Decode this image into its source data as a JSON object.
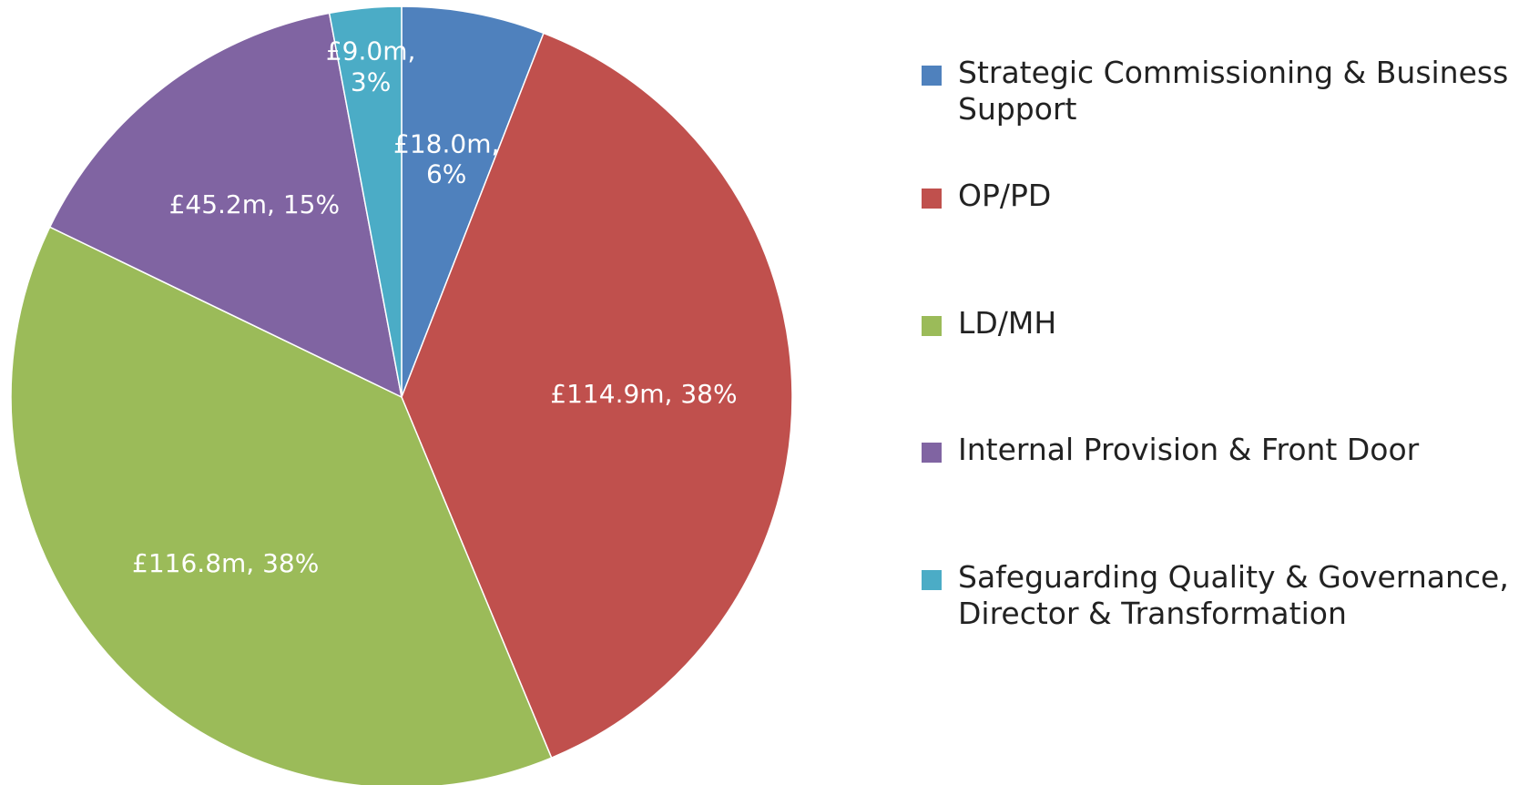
{
  "chart_data": {
    "type": "pie",
    "categories": [
      "Strategic Commissioning & Business Support",
      "OP/PD",
      "LD/MH",
      "Internal Provision & Front Door",
      "Safeguarding Quality & Governance, Director & Transformation"
    ],
    "values": [
      18.0,
      114.9,
      116.8,
      45.2,
      9.0
    ],
    "value_labels": [
      "£18.0m, 6%",
      "£114.9m, 38%",
      "£116.8m, 38%",
      "£45.2m, 15%",
      "£9.0m, 3%"
    ],
    "colors": [
      "#4f81bd",
      "#c0504d",
      "#9bbb59",
      "#8064a2",
      "#4bacc6"
    ],
    "legend": "right"
  }
}
